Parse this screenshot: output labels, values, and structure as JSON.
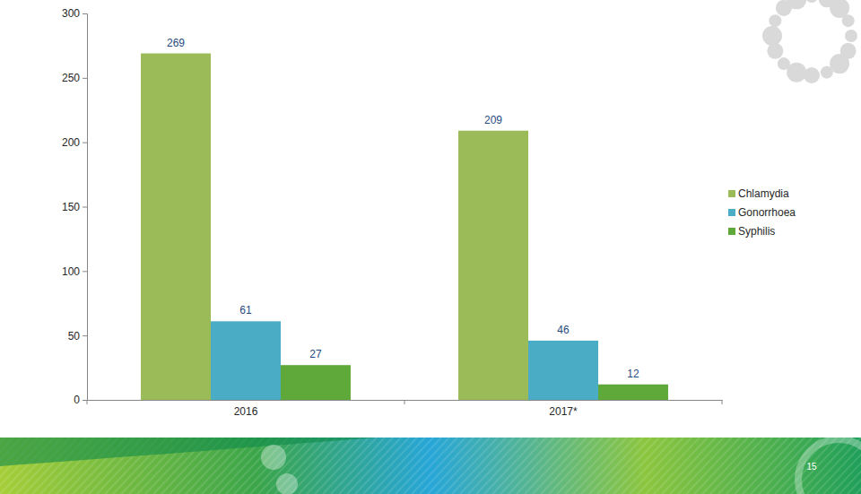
{
  "chart_data": {
    "type": "bar",
    "categories": [
      "2016",
      "2017*"
    ],
    "series": [
      {
        "name": "Chlamydia",
        "color": "#9bbb59",
        "values": [
          269,
          209
        ]
      },
      {
        "name": "Gonorrhoea",
        "color": "#4bacc6",
        "values": [
          61,
          46
        ]
      },
      {
        "name": "Syphilis",
        "color": "#5fa83a",
        "values": [
          27,
          12
        ]
      }
    ],
    "ylim": [
      0,
      300
    ],
    "yticks": [
      0,
      50,
      100,
      150,
      200,
      250,
      300
    ],
    "grid": false,
    "legend": "right",
    "data_labels": true
  },
  "slide": {
    "page_number": "15"
  }
}
